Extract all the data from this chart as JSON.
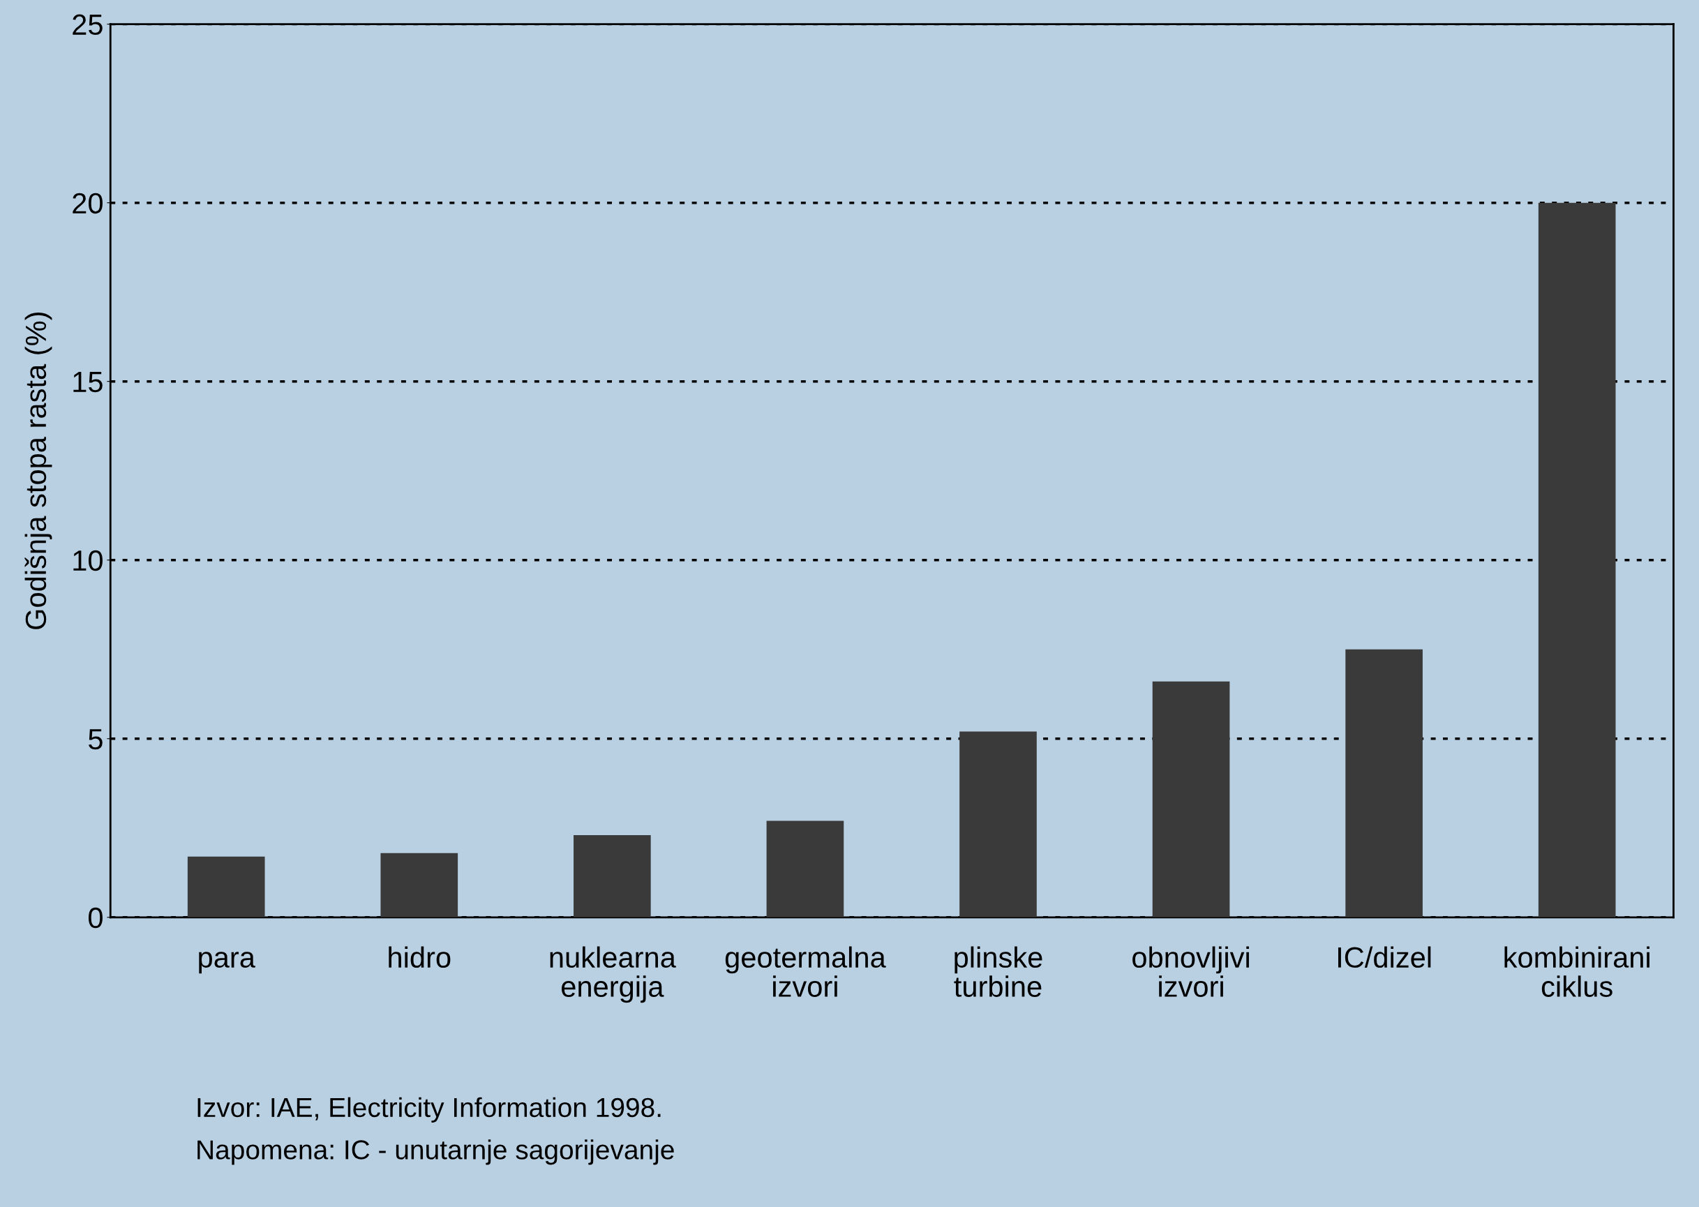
{
  "chart_data": {
    "type": "bar",
    "ylabel": "Godišnja stopa rasta (%)",
    "categories": [
      "para",
      "hidro",
      "nuklearna\nenergija",
      "geotermalna\nizvori",
      "plinske\nturbine",
      "obnovljivi\nizvori",
      "IC/dizel",
      "kombinirani\nciklus"
    ],
    "values": [
      1.7,
      1.8,
      2.3,
      2.7,
      5.2,
      6.6,
      7.5,
      20
    ],
    "color": "#3a3a3a",
    "ylim": [
      0,
      25
    ],
    "yticks": [
      0,
      5,
      10,
      15,
      20,
      25
    ],
    "grid": "y",
    "annotations": [
      "Izvor: IAE, Electricity Information 1998.",
      "Napomena: IC - unutarnje sagorijevanje"
    ]
  }
}
